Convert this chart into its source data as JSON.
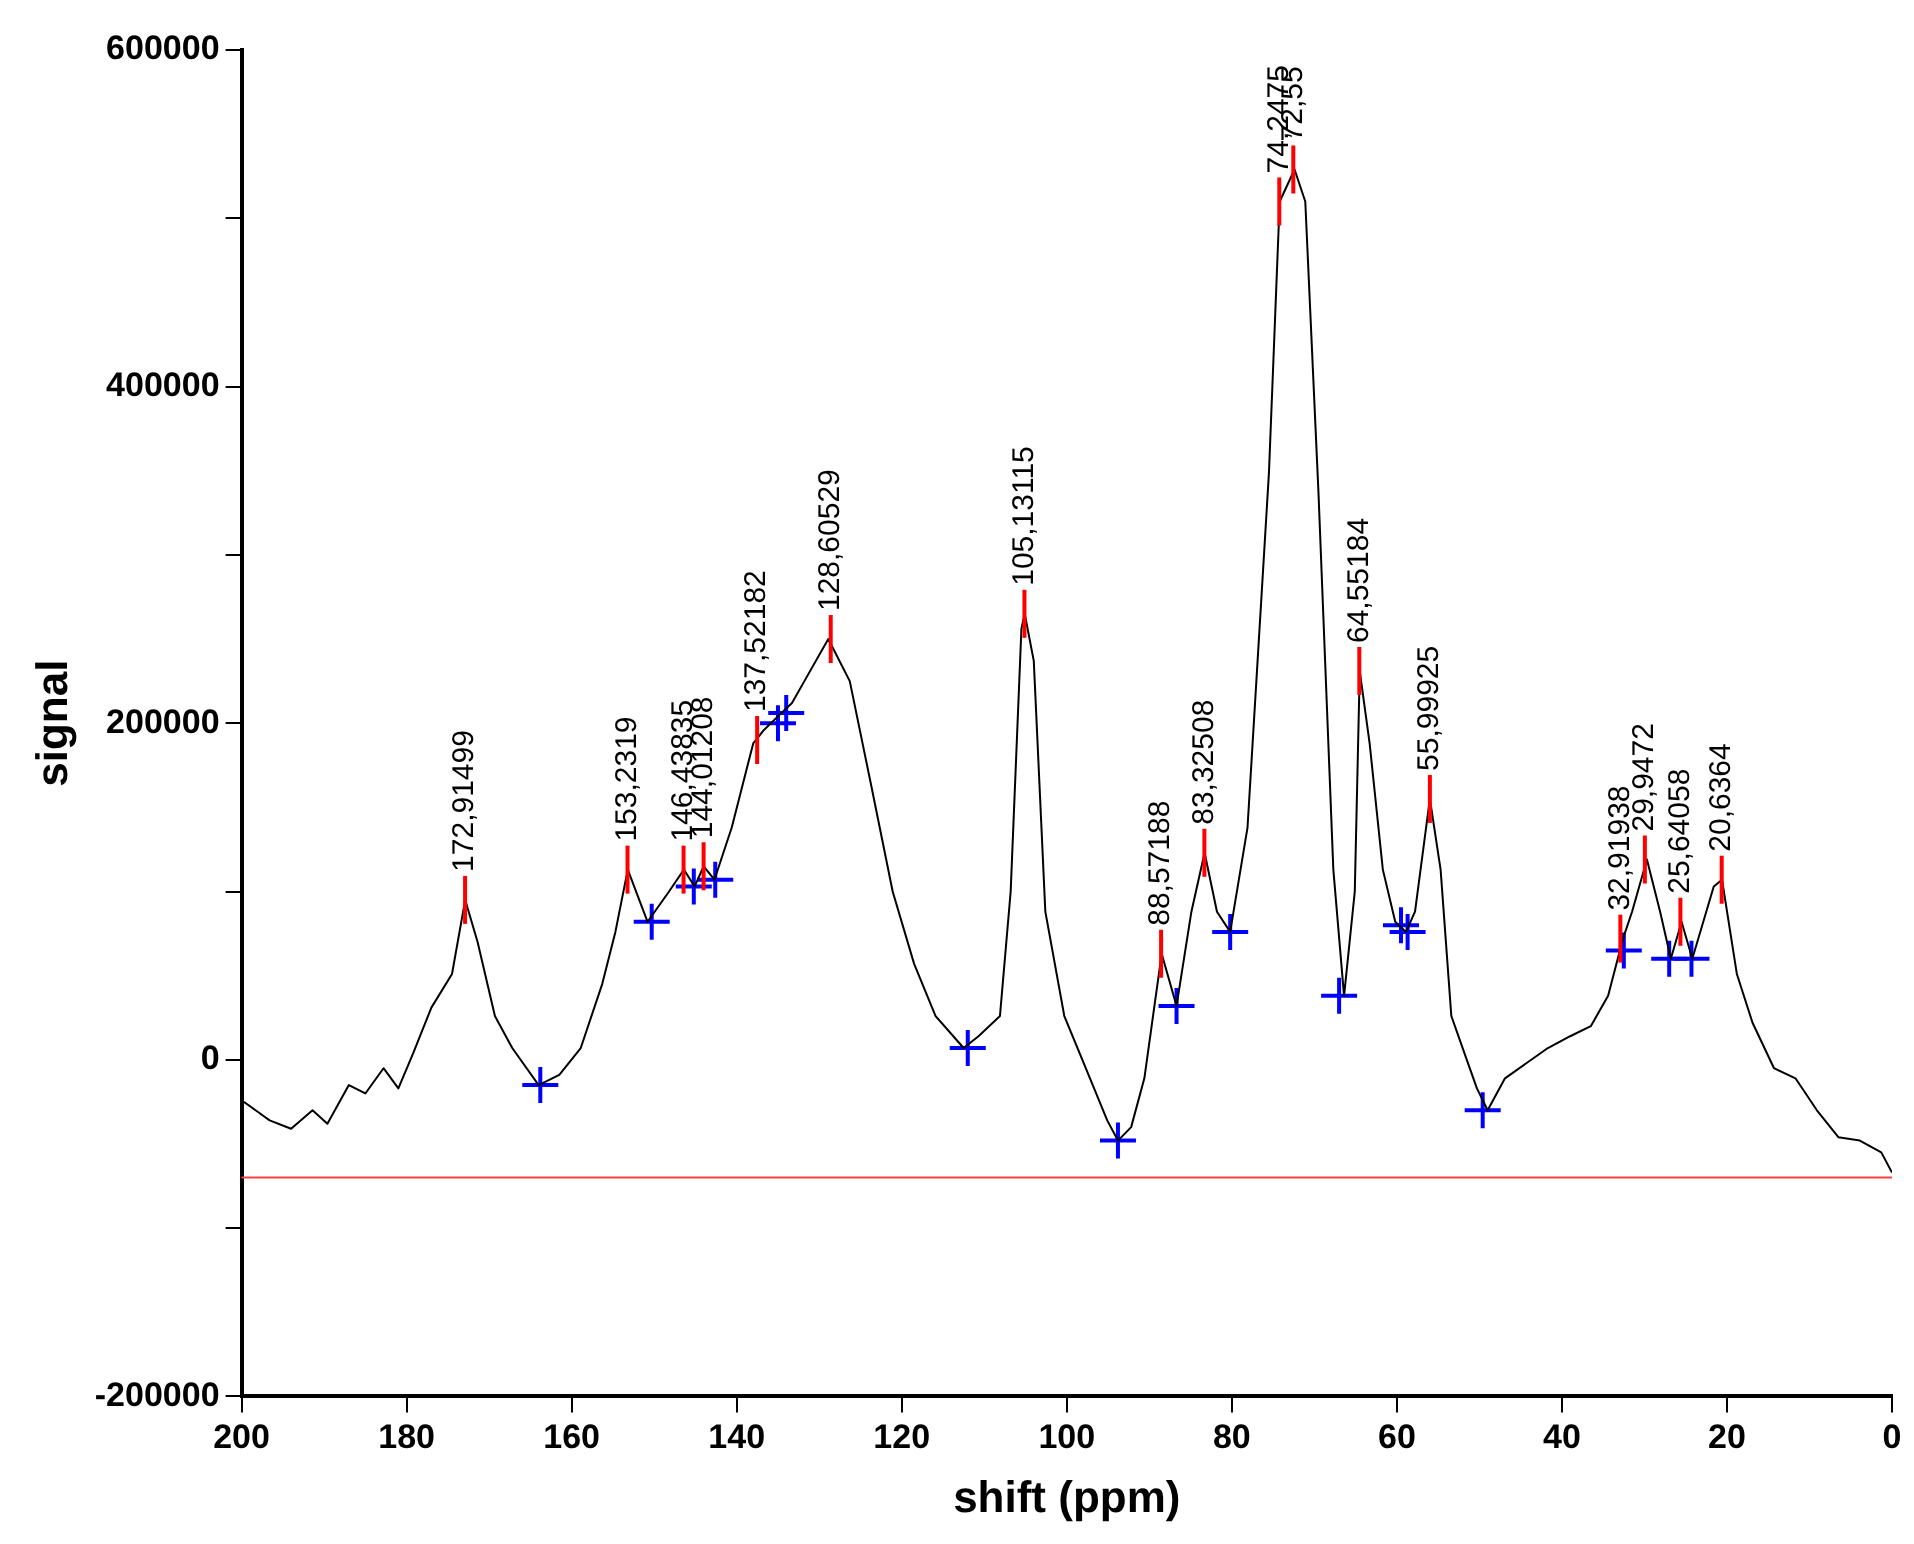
{
  "chart_data": {
    "type": "line",
    "xlabel": "shift (ppm)",
    "ylabel": "signal",
    "xlim": [
      200,
      0
    ],
    "xticks": [
      200,
      180,
      160,
      140,
      120,
      100,
      80,
      60,
      40,
      20,
      0
    ],
    "ylim": [
      -200000,
      600000
    ],
    "yticks": [
      -200000,
      {
        "value": -100000,
        "label": null
      },
      0,
      {
        "value": 100000,
        "label": null
      },
      200000,
      {
        "value": 300000,
        "label": null
      },
      400000,
      {
        "value": 500000,
        "label": null
      },
      600000
    ],
    "grid": false,
    "legend": false,
    "ref_lines": [
      {
        "axis": "y",
        "value": -70000,
        "color": "#ff4040"
      }
    ],
    "series": [
      {
        "color": "#000000",
        "marker": "none",
        "x": [
          200,
          196.6,
          194,
          191.4,
          189.6,
          187,
          185,
          182.8,
          181,
          179.2,
          177,
          174.5,
          172.9,
          171.4,
          169.3,
          167.2,
          164,
          161.5,
          158.9,
          156.3,
          154.7,
          153.2,
          150.8,
          148.2,
          146.4,
          145.1,
          144,
          142.7,
          140.6,
          138,
          136.7,
          134.6,
          133.3,
          131.8,
          128.9,
          126.3,
          123.7,
          121.1,
          118.5,
          115.9,
          112.5,
          110.7,
          108.1,
          106.8,
          105.5,
          105.1,
          104,
          102.6,
          100.3,
          97.7,
          95.1,
          93.8,
          92.2,
          90.6,
          88.5,
          86.7,
          84.9,
          83.3,
          81.8,
          80.2,
          78.1,
          75.5,
          74.2,
          72.4,
          71.1,
          69.5,
          67.7,
          66.4,
          65.1,
          64.5,
          63.3,
          61.7,
          60.2,
          58.9,
          57.8,
          56,
          54.7,
          53.4,
          51.6,
          50.3,
          49,
          46.9,
          41.7,
          39,
          36.5,
          34.4,
          32.6,
          31.5,
          29.7,
          28.1,
          26.8,
          25.5,
          24.2,
          21.6,
          20.6,
          18.8,
          16.9,
          14.3,
          11.7,
          9.1,
          6.5,
          3.9,
          1.3,
          0
        ],
        "values": [
          -24000,
          -36000,
          -41000,
          -30000,
          -38000,
          -15000,
          -20000,
          -5000,
          -17000,
          4000,
          31000,
          51000,
          95000,
          70000,
          26000,
          7000,
          -15000,
          -9000,
          7000,
          45000,
          76000,
          113000,
          82000,
          100000,
          113000,
          103000,
          115000,
          107000,
          138000,
          188000,
          196000,
          206000,
          212000,
          225000,
          250000,
          225000,
          163000,
          100000,
          57000,
          26000,
          7000,
          14000,
          26000,
          100000,
          256000,
          265000,
          237000,
          88000,
          26000,
          -5000,
          -36000,
          -48000,
          -40000,
          -11000,
          63000,
          32000,
          88000,
          123000,
          88000,
          76000,
          138000,
          349000,
          510000,
          529000,
          510000,
          337000,
          113000,
          38000,
          100000,
          231000,
          188000,
          113000,
          82000,
          76000,
          88000,
          155000,
          113000,
          26000,
          1000,
          -17000,
          -30000,
          -11000,
          7000,
          14000,
          20000,
          38000,
          72000,
          88000,
          119000,
          88000,
          60000,
          82000,
          60000,
          103000,
          107000,
          51000,
          22000,
          -5000,
          -11000,
          -30000,
          -46000,
          -48000,
          -55000,
          -67000
        ]
      },
      {
        "type": "scatter",
        "color": "#0000ff",
        "marker": "cross",
        "x": [
          163.8,
          150.3,
          145.2,
          142.6,
          135,
          134,
          112,
          93.8,
          86.7,
          80.2,
          67,
          59.5,
          58.7,
          49.6,
          32.5,
          27,
          24.3
        ],
        "values": [
          -15000,
          82000,
          103000,
          107000,
          200000,
          206000,
          7000,
          -48000,
          32000,
          76000,
          38000,
          80000,
          76000,
          -30000,
          65000,
          60000,
          60000
        ]
      }
    ],
    "annotations": [
      {
        "text": "172,91499",
        "x": 172.91499,
        "y": 95000
      },
      {
        "text": "153,2319",
        "x": 153.2319,
        "y": 113000
      },
      {
        "text": "146,43835",
        "x": 146.43835,
        "y": 113000
      },
      {
        "text": "144,01208",
        "x": 144.01208,
        "y": 115000
      },
      {
        "text": "137,52182",
        "x": 137.52182,
        "y": 190000
      },
      {
        "text": "128,60529",
        "x": 128.60529,
        "y": 250000
      },
      {
        "text": "105,13115",
        "x": 105.13115,
        "y": 265000
      },
      {
        "text": "88,57188",
        "x": 88.57188,
        "y": 63000
      },
      {
        "text": "83,32508",
        "x": 83.32508,
        "y": 123000
      },
      {
        "text": "74,2475",
        "x": 74.2475,
        "y": 510000
      },
      {
        "text": "72,55",
        "x": 72.55,
        "y": 529000
      },
      {
        "text": "64,55184",
        "x": 64.55184,
        "y": 231000
      },
      {
        "text": "55,99925",
        "x": 55.99925,
        "y": 155000
      },
      {
        "text": "32,91938",
        "x": 32.91938,
        "y": 72000
      },
      {
        "text": "29,9472",
        "x": 29.9472,
        "y": 119000
      },
      {
        "text": "25,64058",
        "x": 25.64058,
        "y": 82000
      },
      {
        "text": "20,6364",
        "x": 20.6364,
        "y": 107000
      }
    ]
  }
}
